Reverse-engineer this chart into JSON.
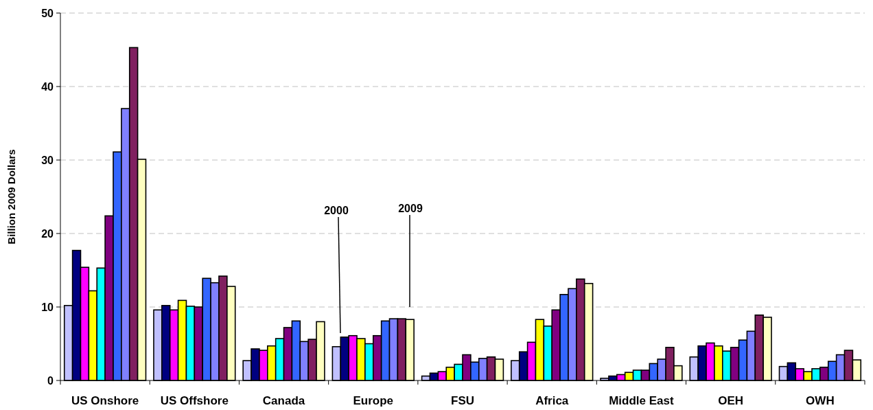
{
  "chart_data": {
    "type": "bar",
    "ylabel": "Billion 2009 Dollars",
    "categories": [
      "US Onshore",
      "US Offshore",
      "Canada",
      "Europe",
      "FSU",
      "Africa",
      "Middle East",
      "OEH",
      "OWH"
    ],
    "series": [
      {
        "color": "#c0c0ff",
        "values": [
          10.2,
          9.6,
          2.7,
          4.6,
          0.6,
          2.7,
          0.3,
          3.2,
          1.9
        ]
      },
      {
        "color": "#000080",
        "values": [
          17.7,
          10.2,
          4.3,
          5.9,
          1.0,
          3.9,
          0.6,
          4.7,
          2.4
        ]
      },
      {
        "color": "#ff00ff",
        "values": [
          15.4,
          9.6,
          4.1,
          6.1,
          1.2,
          5.2,
          0.8,
          5.1,
          1.6
        ]
      },
      {
        "color": "#ffff00",
        "values": [
          12.2,
          10.9,
          4.7,
          5.7,
          1.8,
          8.3,
          1.1,
          4.7,
          1.2
        ]
      },
      {
        "color": "#00ffff",
        "values": [
          15.3,
          10.1,
          5.7,
          5.0,
          2.2,
          7.4,
          1.4,
          4.0,
          1.6
        ]
      },
      {
        "color": "#800080",
        "values": [
          22.4,
          10.0,
          7.2,
          6.1,
          3.5,
          9.6,
          1.4,
          4.5,
          1.8
        ]
      },
      {
        "color": "#3366ff",
        "values": [
          31.1,
          13.9,
          8.1,
          8.1,
          2.5,
          11.7,
          2.3,
          5.5,
          2.6
        ]
      },
      {
        "color": "#8080ff",
        "values": [
          37.0,
          13.3,
          5.3,
          8.4,
          3.0,
          12.5,
          2.9,
          6.7,
          3.5
        ]
      },
      {
        "color": "#802060",
        "values": [
          45.3,
          14.2,
          5.6,
          8.4,
          3.2,
          13.8,
          4.5,
          8.9,
          4.1
        ]
      },
      {
        "color": "#ffffc0",
        "values": [
          30.1,
          12.8,
          8.0,
          8.3,
          2.9,
          13.2,
          2.0,
          8.6,
          2.8
        ]
      }
    ],
    "ylim": [
      0,
      50
    ],
    "yticks": [
      0,
      10,
      20,
      30,
      40,
      50
    ],
    "grid": "y",
    "annotations": [
      "2000",
      "2009"
    ]
  }
}
